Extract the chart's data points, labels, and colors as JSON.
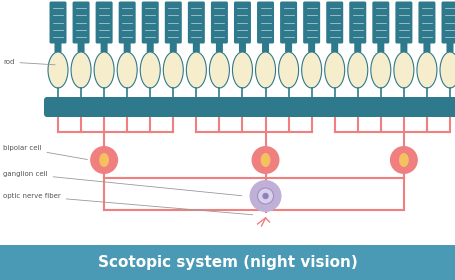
{
  "title": "Scotopic system (night vision)",
  "title_bg": "#4A9AB5",
  "title_color": "#FFFFFF",
  "background": "#FFFFFF",
  "rod_dark": "#2E7A8C",
  "rod_inner": "#F5EDCC",
  "bip_color": "#F08080",
  "bip_inner": "#F5C060",
  "gan_color": "#C0B0D8",
  "label_color": "#555555",
  "n_rods": 18,
  "labels": {
    "rod": "rod",
    "bipolar": "bipolar cell",
    "ganglion": "ganglion cell",
    "optic": "optic nerve fiber"
  }
}
